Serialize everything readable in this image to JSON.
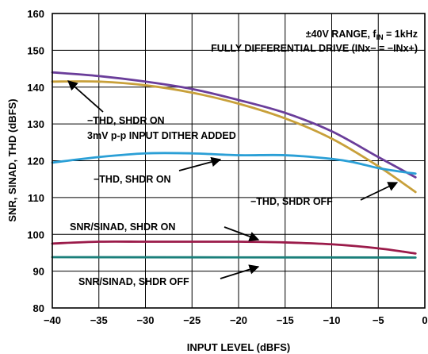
{
  "chart_data": {
    "type": "line",
    "title": "",
    "xlabel": "INPUT LEVEL (dBFS)",
    "ylabel": "SNR, SINAD, THD (dBFS)",
    "xlim": [
      -40,
      0
    ],
    "ylim": [
      80,
      160
    ],
    "x_ticks": [
      "−40",
      "−35",
      "−30",
      "−25",
      "−20",
      "−15",
      "−10",
      "−5",
      "0"
    ],
    "y_ticks": [
      "80",
      "90",
      "100",
      "110",
      "120",
      "130",
      "140",
      "150",
      "160"
    ],
    "grid": true,
    "header_line1": "±40V RANGE, f",
    "header_line1_sub": "IN",
    "header_line1_tail": " = 1kHz",
    "header_line2": "FULLY DIFFERENTIAL DRIVE (INx− = −INx+)",
    "series": [
      {
        "color": "#6a3d9a",
        "x": [
          -40,
          -35,
          -30,
          -25,
          -20,
          -15,
          -10,
          -5,
          -1
        ],
        "y": [
          144,
          143,
          141.5,
          139.5,
          136.5,
          133,
          128,
          121,
          115.5
        ]
      },
      {
        "color": "#c8a03a",
        "x": [
          -40,
          -35,
          -30,
          -25,
          -20,
          -15,
          -10,
          -5,
          -1
        ],
        "y": [
          141.5,
          141.5,
          140.5,
          138.5,
          135.5,
          131.5,
          126,
          118.5,
          111.5
        ]
      },
      {
        "color": "#2a9fd6",
        "x": [
          -40,
          -35,
          -30,
          -25,
          -20,
          -15,
          -10,
          -7.5,
          -5,
          -2.5,
          -1
        ],
        "y": [
          119.5,
          121,
          122,
          122,
          121.5,
          121.5,
          120.5,
          119.5,
          118,
          117,
          116.5
        ]
      },
      {
        "color": "#9b1b4a",
        "x": [
          -40,
          -35,
          -30,
          -25,
          -20,
          -15,
          -10,
          -5,
          -1
        ],
        "y": [
          97.5,
          98,
          98,
          98,
          98,
          97.8,
          97.3,
          96.2,
          94.8
        ]
      },
      {
        "color": "#1a7f7a",
        "x": [
          -40,
          -1
        ],
        "y": [
          93.8,
          93.7
        ]
      }
    ],
    "annotations": [
      {
        "lines": [
          "−THD, SHDR ON",
          "3mV p-p INPUT DITHER ADDED"
        ]
      },
      {
        "lines": [
          "−THD, SHDR ON"
        ]
      },
      {
        "lines": [
          "−THD, SHDR OFF"
        ]
      },
      {
        "lines": [
          "SNR/SINAD, SHDR ON"
        ]
      },
      {
        "lines": [
          "SNR/SINAD, SHDR OFF"
        ]
      }
    ]
  }
}
